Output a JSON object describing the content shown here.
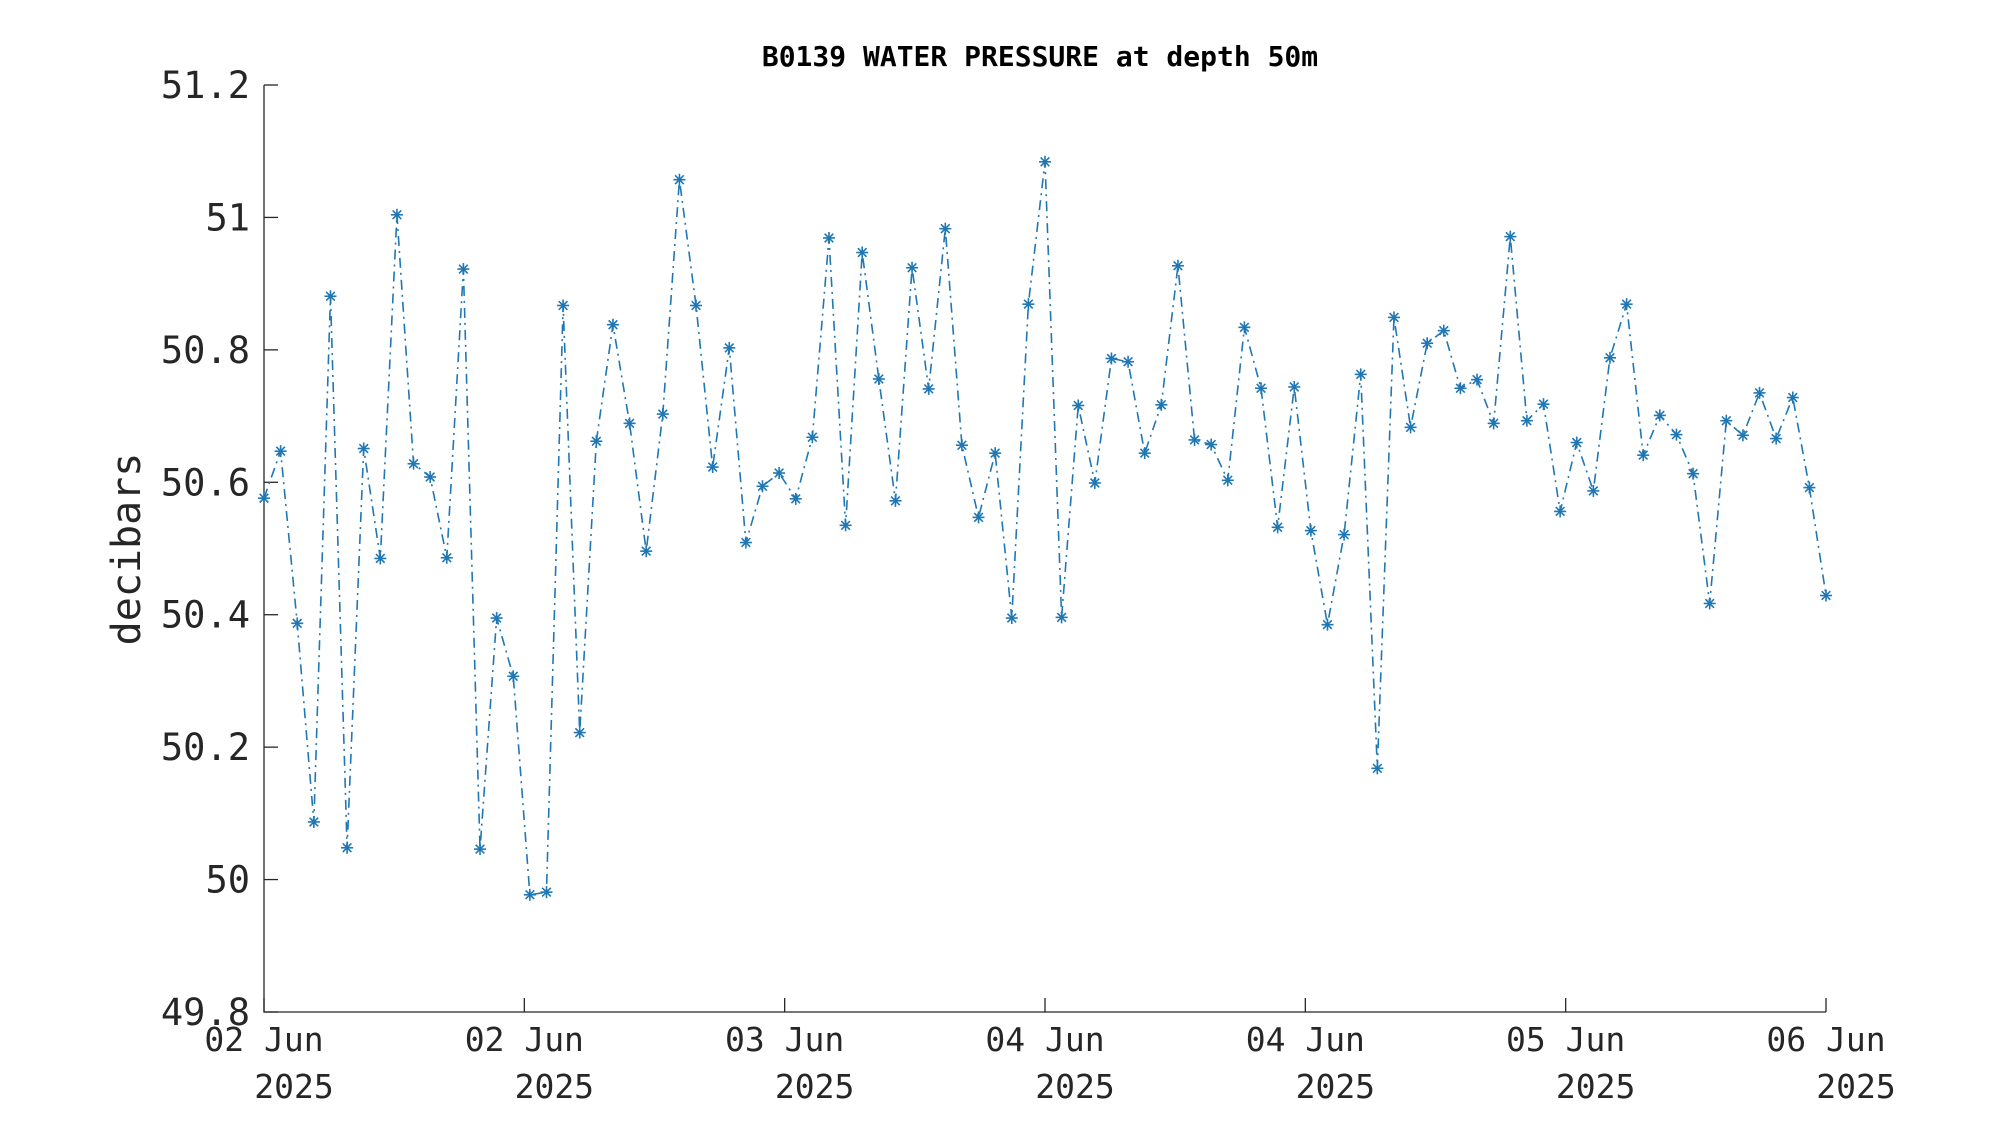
{
  "chart_data": {
    "type": "line",
    "title": "B0139 WATER PRESSURE at depth 50m",
    "xlabel": "",
    "ylabel": "decibars",
    "ylim": [
      49.8,
      51.2
    ],
    "yticks": [
      "49.8",
      "50",
      "50.2",
      "50.4",
      "50.6",
      "50.8",
      "51",
      "51.2"
    ],
    "xticks": [
      {
        "day": "02 Jun",
        "year": "2025"
      },
      {
        "day": "02 Jun",
        "year": "2025"
      },
      {
        "day": "03 Jun",
        "year": "2025"
      },
      {
        "day": "04 Jun",
        "year": "2025"
      },
      {
        "day": "04 Jun",
        "year": "2025"
      },
      {
        "day": "05 Jun",
        "year": "2025"
      },
      {
        "day": "06 Jun",
        "year": "2025"
      }
    ],
    "grid": false,
    "marker": "asterisk",
    "line_style": "dash-dot",
    "color": "#1f77b4",
    "series": [
      {
        "values": [
          50.576,
          50.647,
          50.387,
          50.087,
          50.881,
          50.048,
          50.651,
          50.485,
          51.004,
          50.628,
          50.608,
          50.486,
          50.922,
          50.046,
          50.395,
          50.307,
          49.977,
          49.981,
          50.867,
          50.222,
          50.662,
          50.838,
          50.689,
          50.496,
          50.703,
          51.057,
          50.867,
          50.623,
          50.803,
          50.509,
          50.594,
          50.614,
          50.575,
          50.668,
          50.969,
          50.535,
          50.947,
          50.756,
          50.572,
          50.924,
          50.741,
          50.983,
          50.656,
          50.547,
          50.644,
          50.395,
          50.869,
          51.084,
          50.396,
          50.716,
          50.599,
          50.787,
          50.782,
          50.644,
          50.717,
          50.927,
          50.664,
          50.657,
          50.603,
          50.834,
          50.742,
          50.532,
          50.744,
          50.527,
          50.385,
          50.521,
          50.763,
          50.168,
          50.849,
          50.683,
          50.81,
          50.829,
          50.742,
          50.755,
          50.689,
          50.971,
          50.693,
          50.718,
          50.556,
          50.66,
          50.587,
          50.788,
          50.869,
          50.641,
          50.701,
          50.672,
          50.613,
          50.417,
          50.693,
          50.671,
          50.735,
          50.666,
          50.728,
          50.592,
          50.429
        ]
      }
    ]
  }
}
